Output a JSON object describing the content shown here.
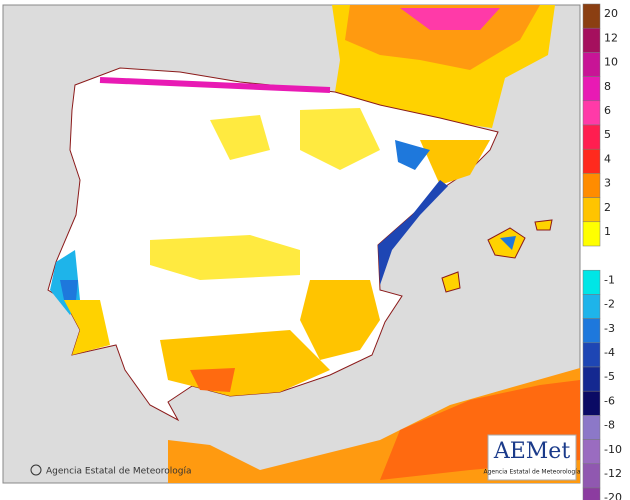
{
  "legend": [
    {
      "value": 20,
      "color": "#8b3f12"
    },
    {
      "value": 12,
      "color": "#a5105e"
    },
    {
      "value": 10,
      "color": "#c81496"
    },
    {
      "value": 8,
      "color": "#e81ab4"
    },
    {
      "value": 6,
      "color": "#ff3aa8"
    },
    {
      "value": 5,
      "color": "#ff1e50"
    },
    {
      "value": 4,
      "color": "#ff2a1e"
    },
    {
      "value": 3,
      "color": "#ff8c00"
    },
    {
      "value": 2,
      "color": "#ffc400"
    },
    {
      "value": 1,
      "color": "#ffff00"
    },
    {
      "value": -1,
      "color": "#00e6e6"
    },
    {
      "value": -2,
      "color": "#1eb4ea"
    },
    {
      "value": -3,
      "color": "#1e78dc"
    },
    {
      "value": -4,
      "color": "#1e46b4"
    },
    {
      "value": -5,
      "color": "#142890"
    },
    {
      "value": -6,
      "color": "#0a0a64"
    },
    {
      "value": -8,
      "color": "#8c78c8"
    },
    {
      "value": -10,
      "color": "#9a6cc0"
    },
    {
      "value": -12,
      "color": "#9058b0"
    },
    {
      "value": -20,
      "color": "#8c3ca0"
    }
  ],
  "footer": "Agencia Estatal de Meteorología",
  "logo": {
    "name": "AEMet",
    "subtitle": "Agencia Estatal de Meteorología"
  }
}
